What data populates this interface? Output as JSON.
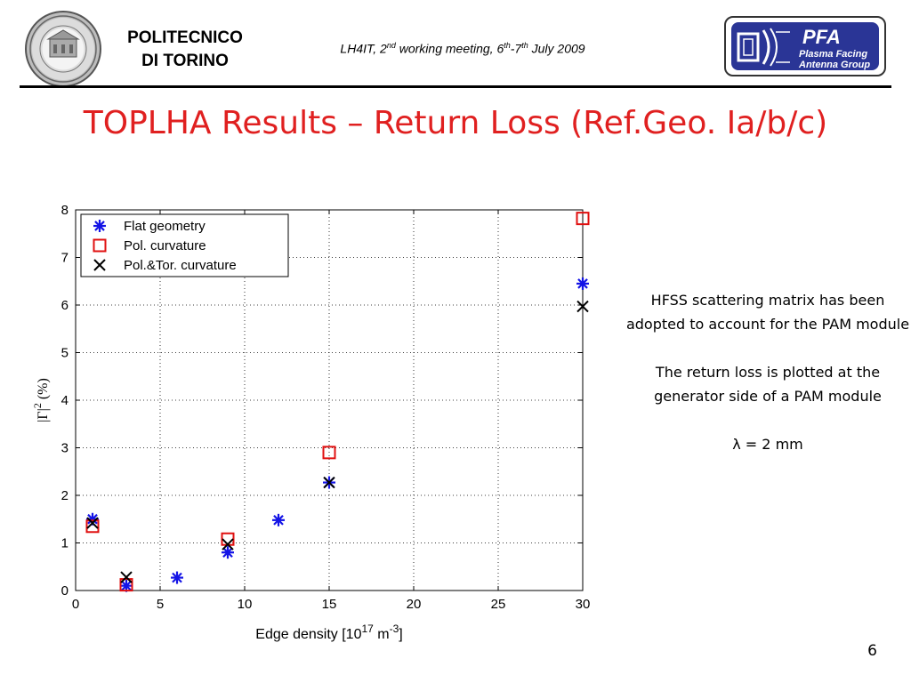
{
  "header": {
    "institution_line1": "POLITECNICO",
    "institution_line2": "DI TORINO",
    "meeting_part1": "LH4IT, 2",
    "meeting_sup1": "nd",
    "meeting_part2": " working meeting, 6",
    "meeting_sup2": "th",
    "meeting_part3": "-7",
    "meeting_sup3": "th",
    "meeting_part4": " July 2009",
    "logo_acronym": "PFA",
    "logo_line1": "Plasma Facing",
    "logo_line2": "Antenna Group"
  },
  "slide": {
    "title": "TOPLHA Results – Return Loss (Ref.Geo. Ia/b/c)",
    "notes": [
      "HFSS scattering matrix has been adopted to account for the PAM module",
      "The return loss is plotted at the generator side of a PAM module",
      "λ = 2 mm"
    ],
    "page_number": "6"
  },
  "colors": {
    "title": "#e02020",
    "flat": "#1414e6",
    "pol": "#e01010",
    "poltor": "#000000",
    "logo_bg": "#2a3596"
  },
  "chart_data": {
    "type": "scatter",
    "xlabel_prefix": "Edge density [10",
    "xlabel_sup1": "17",
    "xlabel_mid": " m",
    "xlabel_sup2": "-3",
    "xlabel_suffix": "]",
    "ylabel_prefix": "|Γ|",
    "ylabel_sup": "2",
    "ylabel_suffix": " (%)",
    "xlim": [
      0,
      30
    ],
    "ylim": [
      0,
      8
    ],
    "xticks": [
      0,
      5,
      10,
      15,
      20,
      25,
      30
    ],
    "yticks": [
      0,
      1,
      2,
      3,
      4,
      5,
      6,
      7,
      8
    ],
    "grid": true,
    "legend_position": "top-left",
    "series": [
      {
        "name": "Flat geometry",
        "marker": "asterisk",
        "color": "#1414e6",
        "x": [
          1,
          3,
          6,
          9,
          12,
          15,
          30
        ],
        "y": [
          1.5,
          0.1,
          0.27,
          0.8,
          1.48,
          2.27,
          6.45
        ]
      },
      {
        "name": "Pol. curvature",
        "marker": "square",
        "color": "#e01010",
        "x": [
          1,
          3,
          9,
          15,
          30
        ],
        "y": [
          1.35,
          0.12,
          1.08,
          2.9,
          7.82
        ]
      },
      {
        "name": "Pol.&Tor. curvature",
        "marker": "x",
        "color": "#000000",
        "x": [
          1,
          3,
          9,
          15,
          30
        ],
        "y": [
          1.42,
          0.28,
          0.97,
          2.27,
          5.97
        ]
      }
    ]
  }
}
